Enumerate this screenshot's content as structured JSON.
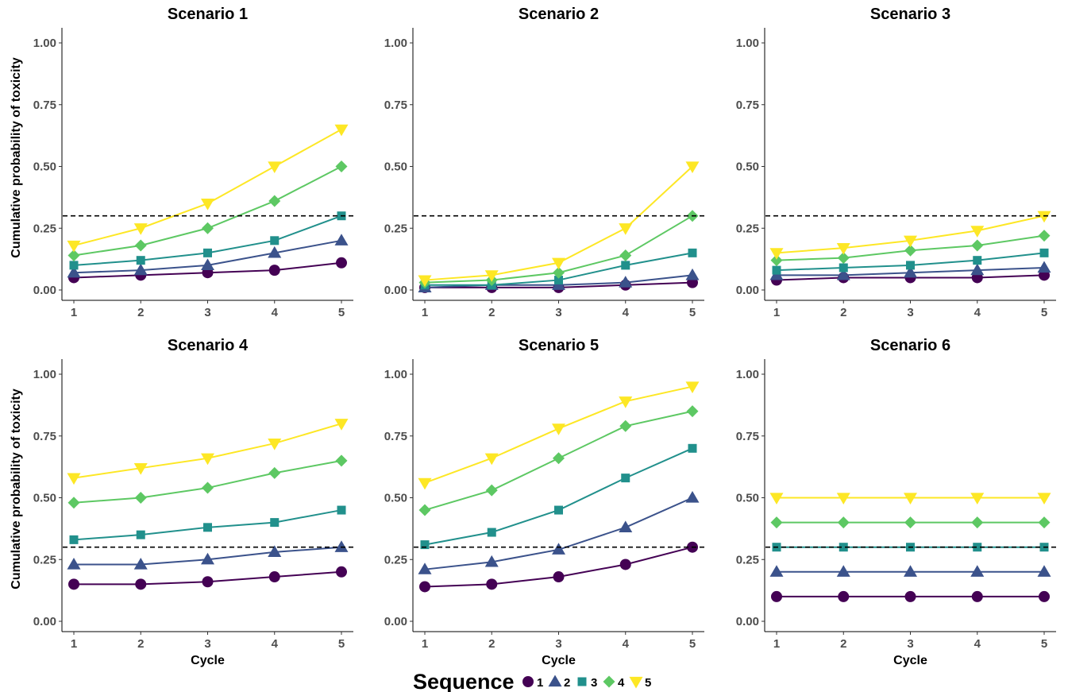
{
  "chart_data": {
    "type": "line",
    "x": [
      1,
      2,
      3,
      4,
      5
    ],
    "xlabel": "Cycle",
    "ylabel": "Cumulative probability of toxicity",
    "ylim": [
      0,
      1
    ],
    "yticks": [
      "0.00",
      "0.25",
      "0.50",
      "0.75",
      "1.00"
    ],
    "xticks": [
      "1",
      "2",
      "3",
      "4",
      "5"
    ],
    "reference_line": 0.3,
    "legend": {
      "title": "Sequence",
      "position": "bottom",
      "entries": [
        {
          "label": "1",
          "color": "#440154",
          "shape": "circle"
        },
        {
          "label": "2",
          "color": "#3B528B",
          "shape": "triangle-up"
        },
        {
          "label": "3",
          "color": "#21908C",
          "shape": "square"
        },
        {
          "label": "4",
          "color": "#5DC863",
          "shape": "diamond"
        },
        {
          "label": "5",
          "color": "#FDE725",
          "shape": "triangle-down"
        }
      ]
    },
    "panels": [
      {
        "title": "Scenario 1",
        "series": [
          {
            "name": "1",
            "values": [
              0.05,
              0.06,
              0.07,
              0.08,
              0.11
            ]
          },
          {
            "name": "2",
            "values": [
              0.07,
              0.08,
              0.1,
              0.15,
              0.2
            ]
          },
          {
            "name": "3",
            "values": [
              0.1,
              0.12,
              0.15,
              0.2,
              0.3
            ]
          },
          {
            "name": "4",
            "values": [
              0.14,
              0.18,
              0.25,
              0.36,
              0.5
            ]
          },
          {
            "name": "5",
            "values": [
              0.18,
              0.25,
              0.35,
              0.5,
              0.65
            ]
          }
        ]
      },
      {
        "title": "Scenario 2",
        "series": [
          {
            "name": "1",
            "values": [
              0.01,
              0.01,
              0.01,
              0.02,
              0.03
            ]
          },
          {
            "name": "2",
            "values": [
              0.01,
              0.02,
              0.02,
              0.03,
              0.06
            ]
          },
          {
            "name": "3",
            "values": [
              0.02,
              0.02,
              0.04,
              0.1,
              0.15
            ]
          },
          {
            "name": "4",
            "values": [
              0.03,
              0.04,
              0.07,
              0.14,
              0.3
            ]
          },
          {
            "name": "5",
            "values": [
              0.04,
              0.06,
              0.11,
              0.25,
              0.5
            ]
          }
        ]
      },
      {
        "title": "Scenario 3",
        "series": [
          {
            "name": "1",
            "values": [
              0.04,
              0.05,
              0.05,
              0.05,
              0.06
            ]
          },
          {
            "name": "2",
            "values": [
              0.06,
              0.06,
              0.07,
              0.08,
              0.09
            ]
          },
          {
            "name": "3",
            "values": [
              0.08,
              0.09,
              0.1,
              0.12,
              0.15
            ]
          },
          {
            "name": "4",
            "values": [
              0.12,
              0.13,
              0.16,
              0.18,
              0.22
            ]
          },
          {
            "name": "5",
            "values": [
              0.15,
              0.17,
              0.2,
              0.24,
              0.3
            ]
          }
        ]
      },
      {
        "title": "Scenario 4",
        "series": [
          {
            "name": "1",
            "values": [
              0.15,
              0.15,
              0.16,
              0.18,
              0.2
            ]
          },
          {
            "name": "2",
            "values": [
              0.23,
              0.23,
              0.25,
              0.28,
              0.3
            ]
          },
          {
            "name": "3",
            "values": [
              0.33,
              0.35,
              0.38,
              0.4,
              0.45
            ]
          },
          {
            "name": "4",
            "values": [
              0.48,
              0.5,
              0.54,
              0.6,
              0.65
            ]
          },
          {
            "name": "5",
            "values": [
              0.58,
              0.62,
              0.66,
              0.72,
              0.8
            ]
          }
        ]
      },
      {
        "title": "Scenario 5",
        "series": [
          {
            "name": "1",
            "values": [
              0.14,
              0.15,
              0.18,
              0.23,
              0.3
            ]
          },
          {
            "name": "2",
            "values": [
              0.21,
              0.24,
              0.29,
              0.38,
              0.5
            ]
          },
          {
            "name": "3",
            "values": [
              0.31,
              0.36,
              0.45,
              0.58,
              0.7
            ]
          },
          {
            "name": "4",
            "values": [
              0.45,
              0.53,
              0.66,
              0.79,
              0.85
            ]
          },
          {
            "name": "5",
            "values": [
              0.56,
              0.66,
              0.78,
              0.89,
              0.95
            ]
          }
        ]
      },
      {
        "title": "Scenario 6",
        "series": [
          {
            "name": "1",
            "values": [
              0.1,
              0.1,
              0.1,
              0.1,
              0.1
            ]
          },
          {
            "name": "2",
            "values": [
              0.2,
              0.2,
              0.2,
              0.2,
              0.2
            ]
          },
          {
            "name": "3",
            "values": [
              0.3,
              0.3,
              0.3,
              0.3,
              0.3
            ]
          },
          {
            "name": "4",
            "values": [
              0.4,
              0.4,
              0.4,
              0.4,
              0.4
            ]
          },
          {
            "name": "5",
            "values": [
              0.5,
              0.5,
              0.5,
              0.5,
              0.5
            ]
          }
        ]
      }
    ]
  }
}
